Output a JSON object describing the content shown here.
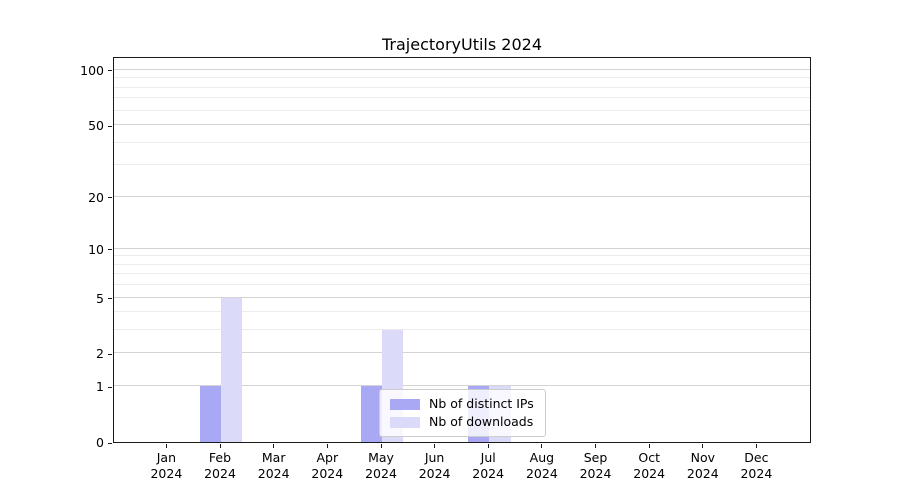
{
  "chart_data": {
    "type": "bar",
    "title": "TrajectoryUtils 2024",
    "categories": [
      "Jan",
      "Feb",
      "Mar",
      "Apr",
      "May",
      "Jun",
      "Jul",
      "Aug",
      "Sep",
      "Oct",
      "Nov",
      "Dec"
    ],
    "x_year": "2024",
    "series": [
      {
        "name": "Nb of distinct IPs",
        "color": "#a8a8f4",
        "values": [
          0,
          1,
          0,
          0,
          1,
          0,
          1,
          0,
          0,
          0,
          0,
          0
        ]
      },
      {
        "name": "Nb of downloads",
        "color": "#dbdbf9",
        "values": [
          0,
          5,
          0,
          0,
          3,
          0,
          1,
          0,
          0,
          0,
          0,
          0
        ]
      }
    ],
    "xlabel": "",
    "ylabel": "",
    "y_axis": {
      "scale": "log1p",
      "ticks": [
        0,
        1,
        2,
        5,
        10,
        20,
        50,
        100
      ],
      "minor_gridlines": [
        3,
        4,
        6,
        7,
        8,
        9,
        30,
        40,
        60,
        70,
        80,
        90
      ],
      "max": 119
    },
    "grid": true,
    "legend_position": "lower center, inside plot"
  },
  "colors": {
    "major_grid": "#d4d4d4",
    "minor_grid": "#ececec",
    "spine": "#1a1a1a",
    "distinct_ips": "#a8a8f4",
    "downloads": "#dbdbf9"
  }
}
